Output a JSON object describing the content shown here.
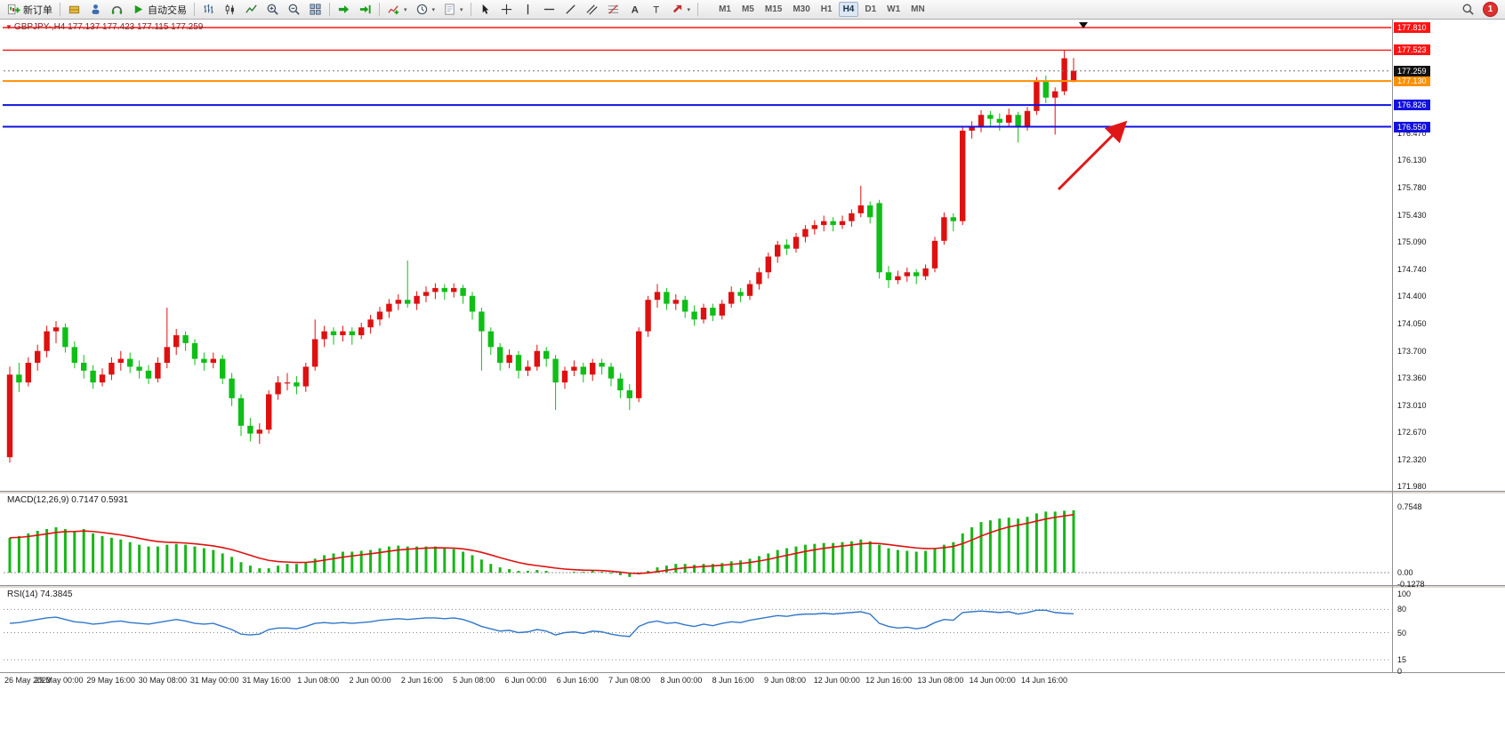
{
  "toolbar": {
    "new_order": "新订单",
    "auto_trading": "自动交易",
    "timeframes": [
      "M1",
      "M5",
      "M15",
      "M30",
      "H1",
      "H4",
      "D1",
      "W1",
      "MN"
    ],
    "active_timeframe": "H4",
    "notification_badge": "1",
    "caret_glyph": "▾",
    "text_tool_glyph": "A",
    "label_tool_glyph": "T"
  },
  "chart": {
    "marker": "▼",
    "symbol_info": "GBPJPY-,H4 177.137 177.423 177.115 177.259",
    "colors": {
      "bull": "#df1010",
      "bear": "#0fbe17",
      "red_level": "#ff1414",
      "orange_level": "#ff9000",
      "blue_level": "#1212e0",
      "current_price_bg": "#121212",
      "annotation_arrow": "#e01616",
      "macd_histogram": "#19b619",
      "macd_signal": "#e01010",
      "rsi_line": "#3177c9"
    },
    "levels": [
      {
        "label": "177.810",
        "value": 177.81,
        "color_key": "red_level"
      },
      {
        "label": "177.523",
        "value": 177.523,
        "color_key": "red_level"
      },
      {
        "label": "177.130",
        "value": 177.13,
        "color_key": "orange_level"
      },
      {
        "label": "176.826",
        "value": 176.826,
        "color_key": "blue_level"
      },
      {
        "label": "176.550",
        "value": 176.55,
        "color_key": "blue_level"
      }
    ],
    "current_price": {
      "label": "177.259",
      "value": 177.259
    },
    "scale_labels": [
      {
        "label": "176.470",
        "value": 176.47
      },
      {
        "label": "176.130",
        "value": 176.13
      },
      {
        "label": "175.780",
        "value": 175.78
      },
      {
        "label": "175.430",
        "value": 175.43
      },
      {
        "label": "175.090",
        "value": 175.09
      },
      {
        "label": "174.740",
        "value": 174.74
      },
      {
        "label": "174.400",
        "value": 174.4
      },
      {
        "label": "174.050",
        "value": 174.05
      },
      {
        "label": "173.700",
        "value": 173.7
      },
      {
        "label": "173.360",
        "value": 173.36
      },
      {
        "label": "173.010",
        "value": 173.01
      },
      {
        "label": "172.670",
        "value": 172.67
      },
      {
        "label": "172.320",
        "value": 172.32
      },
      {
        "label": "171.980",
        "value": 171.98
      }
    ],
    "candles": [
      [
        172.35,
        173.5,
        172.28,
        173.4
      ],
      [
        173.4,
        173.55,
        173.18,
        173.3
      ],
      [
        173.3,
        173.62,
        173.25,
        173.55
      ],
      [
        173.55,
        173.78,
        173.45,
        173.7
      ],
      [
        173.7,
        174.02,
        173.62,
        173.95
      ],
      [
        173.95,
        174.08,
        173.8,
        174.0
      ],
      [
        174.0,
        174.05,
        173.68,
        173.75
      ],
      [
        173.75,
        173.82,
        173.48,
        173.55
      ],
      [
        173.55,
        173.65,
        173.35,
        173.45
      ],
      [
        173.45,
        173.52,
        173.22,
        173.3
      ],
      [
        173.3,
        173.48,
        173.25,
        173.4
      ],
      [
        173.4,
        173.62,
        173.33,
        173.55
      ],
      [
        173.55,
        173.7,
        173.45,
        173.6
      ],
      [
        173.6,
        173.68,
        173.42,
        173.5
      ],
      [
        173.5,
        173.58,
        173.35,
        173.45
      ],
      [
        173.45,
        173.52,
        173.28,
        173.35
      ],
      [
        173.35,
        173.62,
        173.3,
        173.55
      ],
      [
        173.55,
        174.25,
        173.48,
        173.75
      ],
      [
        173.75,
        173.98,
        173.65,
        173.9
      ],
      [
        173.9,
        173.95,
        173.7,
        173.8
      ],
      [
        173.8,
        173.85,
        173.52,
        173.6
      ],
      [
        173.6,
        173.68,
        173.45,
        173.55
      ],
      [
        173.55,
        173.68,
        173.48,
        173.6
      ],
      [
        173.6,
        173.65,
        173.28,
        173.35
      ],
      [
        173.35,
        173.42,
        173.0,
        173.1
      ],
      [
        173.1,
        173.15,
        172.62,
        172.75
      ],
      [
        172.75,
        172.85,
        172.55,
        172.65
      ],
      [
        172.65,
        172.78,
        172.52,
        172.7
      ],
      [
        172.7,
        173.2,
        172.65,
        173.15
      ],
      [
        173.15,
        173.38,
        173.08,
        173.3
      ],
      [
        173.3,
        173.42,
        173.2,
        173.3
      ],
      [
        173.3,
        173.38,
        173.15,
        173.25
      ],
      [
        173.25,
        173.55,
        173.18,
        173.5
      ],
      [
        173.5,
        174.1,
        173.45,
        173.85
      ],
      [
        173.85,
        174.02,
        173.75,
        173.95
      ],
      [
        173.95,
        174.0,
        173.78,
        173.9
      ],
      [
        173.9,
        174.02,
        173.82,
        173.95
      ],
      [
        173.95,
        174.0,
        173.78,
        173.9
      ],
      [
        173.9,
        174.06,
        173.85,
        174.0
      ],
      [
        174.0,
        174.16,
        173.92,
        174.1
      ],
      [
        174.1,
        174.26,
        174.02,
        174.2
      ],
      [
        174.2,
        174.36,
        174.12,
        174.3
      ],
      [
        174.3,
        174.42,
        174.22,
        174.35
      ],
      [
        174.35,
        174.85,
        174.25,
        174.3
      ],
      [
        174.3,
        174.46,
        174.22,
        174.4
      ],
      [
        174.4,
        174.52,
        174.32,
        174.45
      ],
      [
        174.45,
        174.56,
        174.36,
        174.5
      ],
      [
        174.5,
        174.55,
        174.35,
        174.45
      ],
      [
        174.45,
        174.56,
        174.38,
        174.5
      ],
      [
        174.5,
        174.54,
        174.3,
        174.4
      ],
      [
        174.4,
        174.45,
        174.1,
        174.2
      ],
      [
        174.2,
        174.25,
        173.45,
        173.95
      ],
      [
        173.95,
        174.0,
        173.65,
        173.75
      ],
      [
        173.75,
        173.8,
        173.45,
        173.55
      ],
      [
        173.55,
        173.72,
        173.48,
        173.65
      ],
      [
        173.65,
        173.7,
        173.35,
        173.45
      ],
      [
        173.45,
        173.58,
        173.38,
        173.5
      ],
      [
        173.5,
        173.78,
        173.45,
        173.7
      ],
      [
        173.7,
        173.75,
        173.5,
        173.6
      ],
      [
        173.6,
        173.65,
        172.95,
        173.3
      ],
      [
        173.3,
        173.5,
        173.22,
        173.45
      ],
      [
        173.45,
        173.58,
        173.38,
        173.5
      ],
      [
        173.5,
        173.55,
        173.3,
        173.4
      ],
      [
        173.4,
        173.6,
        173.32,
        173.55
      ],
      [
        173.55,
        173.6,
        173.4,
        173.5
      ],
      [
        173.5,
        173.55,
        173.25,
        173.35
      ],
      [
        173.35,
        173.42,
        173.1,
        173.2
      ],
      [
        173.2,
        173.28,
        172.95,
        173.1
      ],
      [
        173.1,
        174.0,
        173.05,
        173.95
      ],
      [
        173.95,
        174.4,
        173.88,
        174.35
      ],
      [
        174.35,
        174.55,
        174.25,
        174.45
      ],
      [
        174.45,
        174.5,
        174.22,
        174.3
      ],
      [
        174.3,
        174.42,
        174.22,
        174.35
      ],
      [
        174.35,
        174.4,
        174.12,
        174.2
      ],
      [
        174.2,
        174.28,
        174.02,
        174.1
      ],
      [
        174.1,
        174.3,
        174.05,
        174.25
      ],
      [
        174.25,
        174.3,
        174.08,
        174.15
      ],
      [
        174.15,
        174.35,
        174.1,
        174.3
      ],
      [
        174.3,
        174.52,
        174.25,
        174.45
      ],
      [
        174.45,
        174.5,
        174.32,
        174.4
      ],
      [
        174.4,
        174.6,
        174.35,
        174.55
      ],
      [
        174.55,
        174.76,
        174.48,
        174.7
      ],
      [
        174.7,
        174.95,
        174.62,
        174.9
      ],
      [
        174.9,
        175.1,
        174.82,
        175.05
      ],
      [
        175.05,
        175.12,
        174.92,
        175.0
      ],
      [
        175.0,
        175.2,
        174.95,
        175.15
      ],
      [
        175.15,
        175.3,
        175.08,
        175.25
      ],
      [
        175.25,
        175.36,
        175.18,
        175.3
      ],
      [
        175.3,
        175.42,
        175.22,
        175.35
      ],
      [
        175.35,
        175.4,
        175.22,
        175.3
      ],
      [
        175.3,
        175.42,
        175.25,
        175.35
      ],
      [
        175.35,
        175.5,
        175.28,
        175.45
      ],
      [
        175.45,
        175.8,
        175.4,
        175.55
      ],
      [
        175.55,
        175.6,
        175.32,
        175.4
      ],
      [
        175.58,
        175.62,
        174.62,
        174.7
      ],
      [
        174.7,
        174.78,
        174.5,
        174.6
      ],
      [
        174.6,
        174.72,
        174.55,
        174.65
      ],
      [
        174.65,
        174.76,
        174.58,
        174.7
      ],
      [
        174.7,
        174.74,
        174.55,
        174.65
      ],
      [
        174.65,
        174.8,
        174.6,
        174.75
      ],
      [
        174.75,
        175.15,
        174.7,
        175.1
      ],
      [
        175.1,
        175.46,
        175.05,
        175.4
      ],
      [
        175.4,
        175.45,
        175.22,
        175.35
      ],
      [
        175.35,
        176.55,
        175.3,
        176.5
      ],
      [
        176.5,
        176.62,
        176.4,
        176.55
      ],
      [
        176.55,
        176.76,
        176.48,
        176.7
      ],
      [
        176.7,
        176.75,
        176.55,
        176.65
      ],
      [
        176.65,
        176.72,
        176.5,
        176.6
      ],
      [
        176.6,
        176.78,
        176.55,
        176.7
      ],
      [
        176.7,
        176.74,
        176.35,
        176.55
      ],
      [
        176.55,
        176.8,
        176.5,
        176.75
      ],
      [
        176.75,
        177.18,
        176.7,
        177.12
      ],
      [
        177.12,
        177.2,
        176.85,
        176.92
      ],
      [
        176.92,
        177.05,
        176.45,
        177.0
      ],
      [
        177.0,
        177.52,
        176.95,
        177.42
      ],
      [
        177.137,
        177.423,
        177.115,
        177.259
      ]
    ]
  },
  "macd": {
    "label": "MACD(12,26,9) 0.7147 0.5931",
    "scale": [
      {
        "label": "0.7548",
        "value": 0.7548
      },
      {
        "label": "0.00",
        "value": 0
      },
      {
        "label": "-0.1278",
        "value": -0.1278
      }
    ],
    "histogram": [
      0.4,
      0.42,
      0.45,
      0.48,
      0.5,
      0.52,
      0.5,
      0.48,
      0.5,
      0.45,
      0.42,
      0.4,
      0.38,
      0.35,
      0.32,
      0.3,
      0.3,
      0.32,
      0.33,
      0.32,
      0.3,
      0.28,
      0.26,
      0.22,
      0.18,
      0.12,
      0.08,
      0.05,
      0.05,
      0.08,
      0.1,
      0.1,
      0.12,
      0.16,
      0.2,
      0.22,
      0.24,
      0.24,
      0.25,
      0.26,
      0.28,
      0.3,
      0.31,
      0.3,
      0.3,
      0.3,
      0.3,
      0.28,
      0.27,
      0.24,
      0.2,
      0.15,
      0.1,
      0.06,
      0.04,
      0.02,
      0.02,
      0.03,
      0.02,
      0.0,
      0.0,
      0.01,
      0.01,
      0.02,
      0.01,
      -0.01,
      -0.03,
      -0.05,
      -0.02,
      0.02,
      0.06,
      0.08,
      0.1,
      0.1,
      0.09,
      0.1,
      0.1,
      0.11,
      0.13,
      0.14,
      0.16,
      0.19,
      0.22,
      0.26,
      0.28,
      0.3,
      0.32,
      0.33,
      0.34,
      0.34,
      0.35,
      0.36,
      0.38,
      0.36,
      0.32,
      0.28,
      0.26,
      0.25,
      0.24,
      0.25,
      0.28,
      0.32,
      0.35,
      0.45,
      0.52,
      0.58,
      0.6,
      0.62,
      0.63,
      0.62,
      0.64,
      0.68,
      0.7,
      0.7,
      0.71,
      0.715
    ]
  },
  "rsi": {
    "label": "RSI(14) 74.3845",
    "scale": [
      {
        "label": "100",
        "value": 100
      },
      {
        "label": "80",
        "value": 80
      },
      {
        "label": "50",
        "value": 50
      },
      {
        "label": "15",
        "value": 15
      },
      {
        "label": "0",
        "value": 0
      }
    ],
    "levels": [
      80,
      50,
      15
    ],
    "values": [
      62,
      63,
      65,
      67,
      69,
      70,
      67,
      64,
      63,
      61,
      62,
      64,
      65,
      63,
      62,
      61,
      63,
      65,
      67,
      65,
      62,
      61,
      62,
      58,
      54,
      48,
      47,
      48,
      54,
      56,
      56,
      55,
      58,
      62,
      63,
      62,
      63,
      62,
      63,
      64,
      66,
      67,
      68,
      67,
      68,
      69,
      69,
      68,
      69,
      67,
      63,
      58,
      55,
      52,
      53,
      50,
      51,
      54,
      52,
      47,
      50,
      51,
      49,
      52,
      51,
      48,
      46,
      45,
      58,
      63,
      65,
      62,
      63,
      60,
      58,
      61,
      59,
      62,
      64,
      63,
      66,
      68,
      70,
      72,
      71,
      73,
      74,
      74,
      75,
      74,
      75,
      76,
      77,
      74,
      62,
      58,
      56,
      57,
      55,
      57,
      63,
      67,
      66,
      76,
      77,
      78,
      77,
      76,
      77,
      74,
      76,
      79,
      79,
      76,
      75,
      74.4
    ]
  },
  "time_axis": {
    "labels": [
      "26 May 2023",
      "29 May 00:00",
      "29 May 16:00",
      "30 May 08:00",
      "31 May 00:00",
      "31 May 16:00",
      "1 Jun 08:00",
      "2 Jun 00:00",
      "2 Jun 16:00",
      "5 Jun 08:00",
      "6 Jun 00:00",
      "6 Jun 16:00",
      "7 Jun 08:00",
      "8 Jun 00:00",
      "8 Jun 16:00",
      "9 Jun 08:00",
      "12 Jun 00:00",
      "12 Jun 16:00",
      "13 Jun 08:00",
      "14 Jun 00:00",
      "14 Jun 16:00"
    ]
  }
}
